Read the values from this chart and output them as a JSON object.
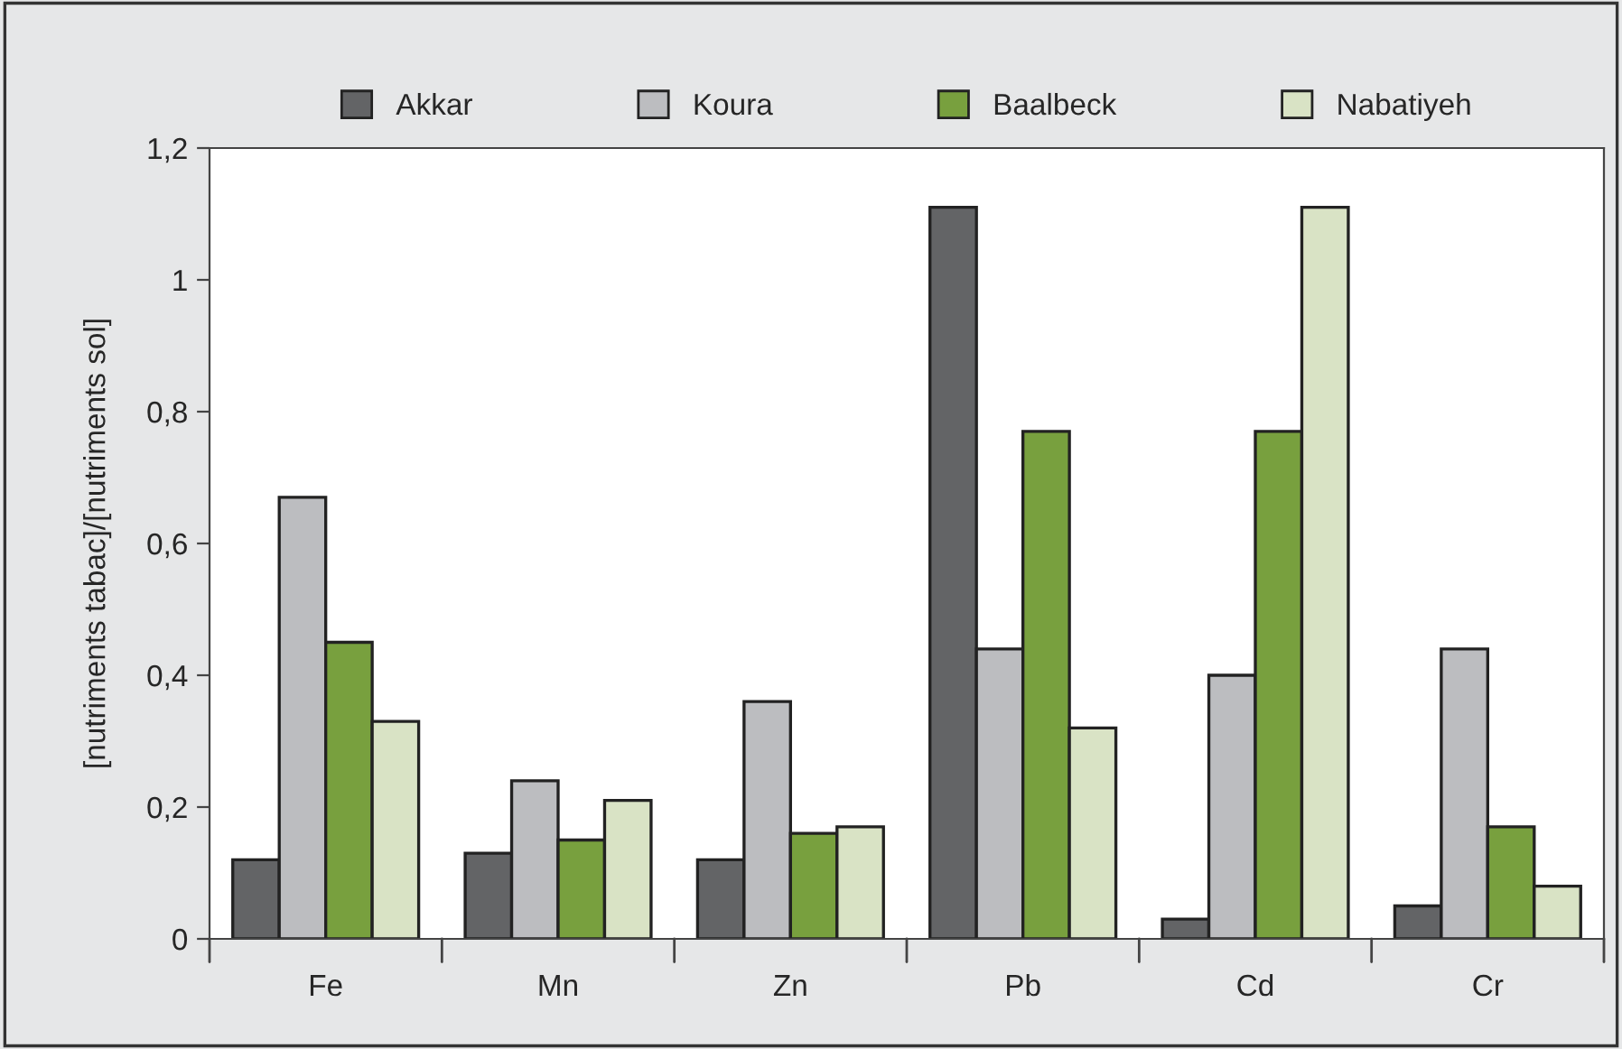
{
  "chart_data": {
    "type": "bar",
    "ylabel": "[nutriments tabac]/[nutriments sol]",
    "categories": [
      "Fe",
      "Mn",
      "Zn",
      "Pb",
      "Cd",
      "Cr"
    ],
    "series": [
      {
        "name": "Akkar",
        "color": "#636466",
        "values": [
          0.12,
          0.13,
          0.12,
          1.11,
          0.03,
          0.05
        ]
      },
      {
        "name": "Koura",
        "color": "#bcbdc0",
        "values": [
          0.67,
          0.24,
          0.36,
          0.44,
          0.4,
          0.44
        ]
      },
      {
        "name": "Baalbeck",
        "color": "#78a03e",
        "values": [
          0.45,
          0.15,
          0.16,
          0.77,
          0.77,
          0.17
        ]
      },
      {
        "name": "Nabatiyeh",
        "color": "#d9e3c5",
        "values": [
          0.33,
          0.21,
          0.17,
          0.32,
          1.11,
          0.08
        ]
      }
    ],
    "ylim": [
      0,
      1.2
    ],
    "yticks": [
      0,
      {
        "value": 0.2,
        "label": "0,2"
      },
      {
        "value": 0.4,
        "label": "0,4"
      },
      {
        "value": 0.6,
        "label": "0,6"
      },
      {
        "value": 0.8,
        "label": "0,8"
      },
      1,
      {
        "value": 1.2,
        "label": "1,2"
      }
    ],
    "grid": false,
    "legend": "top"
  }
}
